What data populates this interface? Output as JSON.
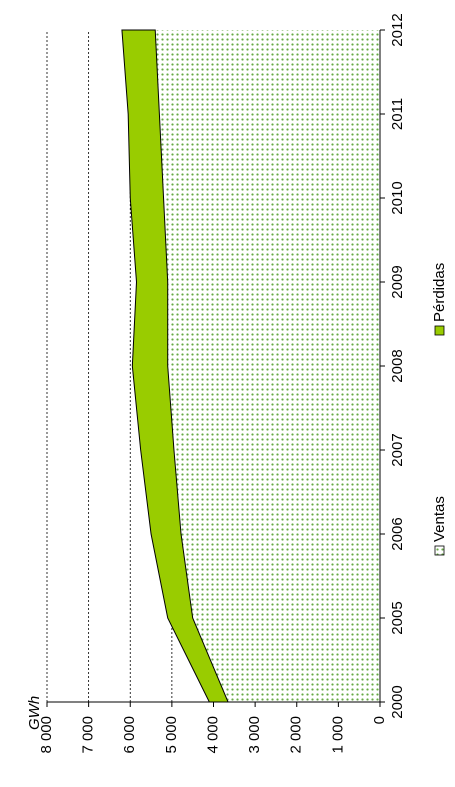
{
  "chart_data": {
    "type": "stacked_area",
    "y_label": "GWh",
    "categories": [
      "2000",
      "2005",
      "2006",
      "2007",
      "2008",
      "2009",
      "2010",
      "2011",
      "2012"
    ],
    "series": [
      {
        "name": "Ventas",
        "color": "#66aa44",
        "values": [
          3650,
          4500,
          4780,
          4950,
          5100,
          5100,
          5200,
          5300,
          5400
        ]
      },
      {
        "name": "Pérdidas",
        "color": "#99cc00",
        "values": [
          450,
          600,
          720,
          800,
          850,
          750,
          800,
          750,
          800
        ]
      }
    ],
    "ylim": [
      0,
      8000
    ],
    "yticks": [
      0,
      {
        "value": 1000,
        "label": "1 000"
      },
      {
        "value": 2000,
        "label": "2 000"
      },
      {
        "value": 3000,
        "label": "3 000"
      },
      {
        "value": 4000,
        "label": "4 000"
      },
      {
        "value": 5000,
        "label": "5 000"
      },
      {
        "value": 6000,
        "label": "6 000"
      },
      {
        "value": 7000,
        "label": "7 000"
      },
      {
        "value": 8000,
        "label": "8 000"
      }
    ],
    "grid": true,
    "legend": "bottom",
    "rotated": true
  }
}
